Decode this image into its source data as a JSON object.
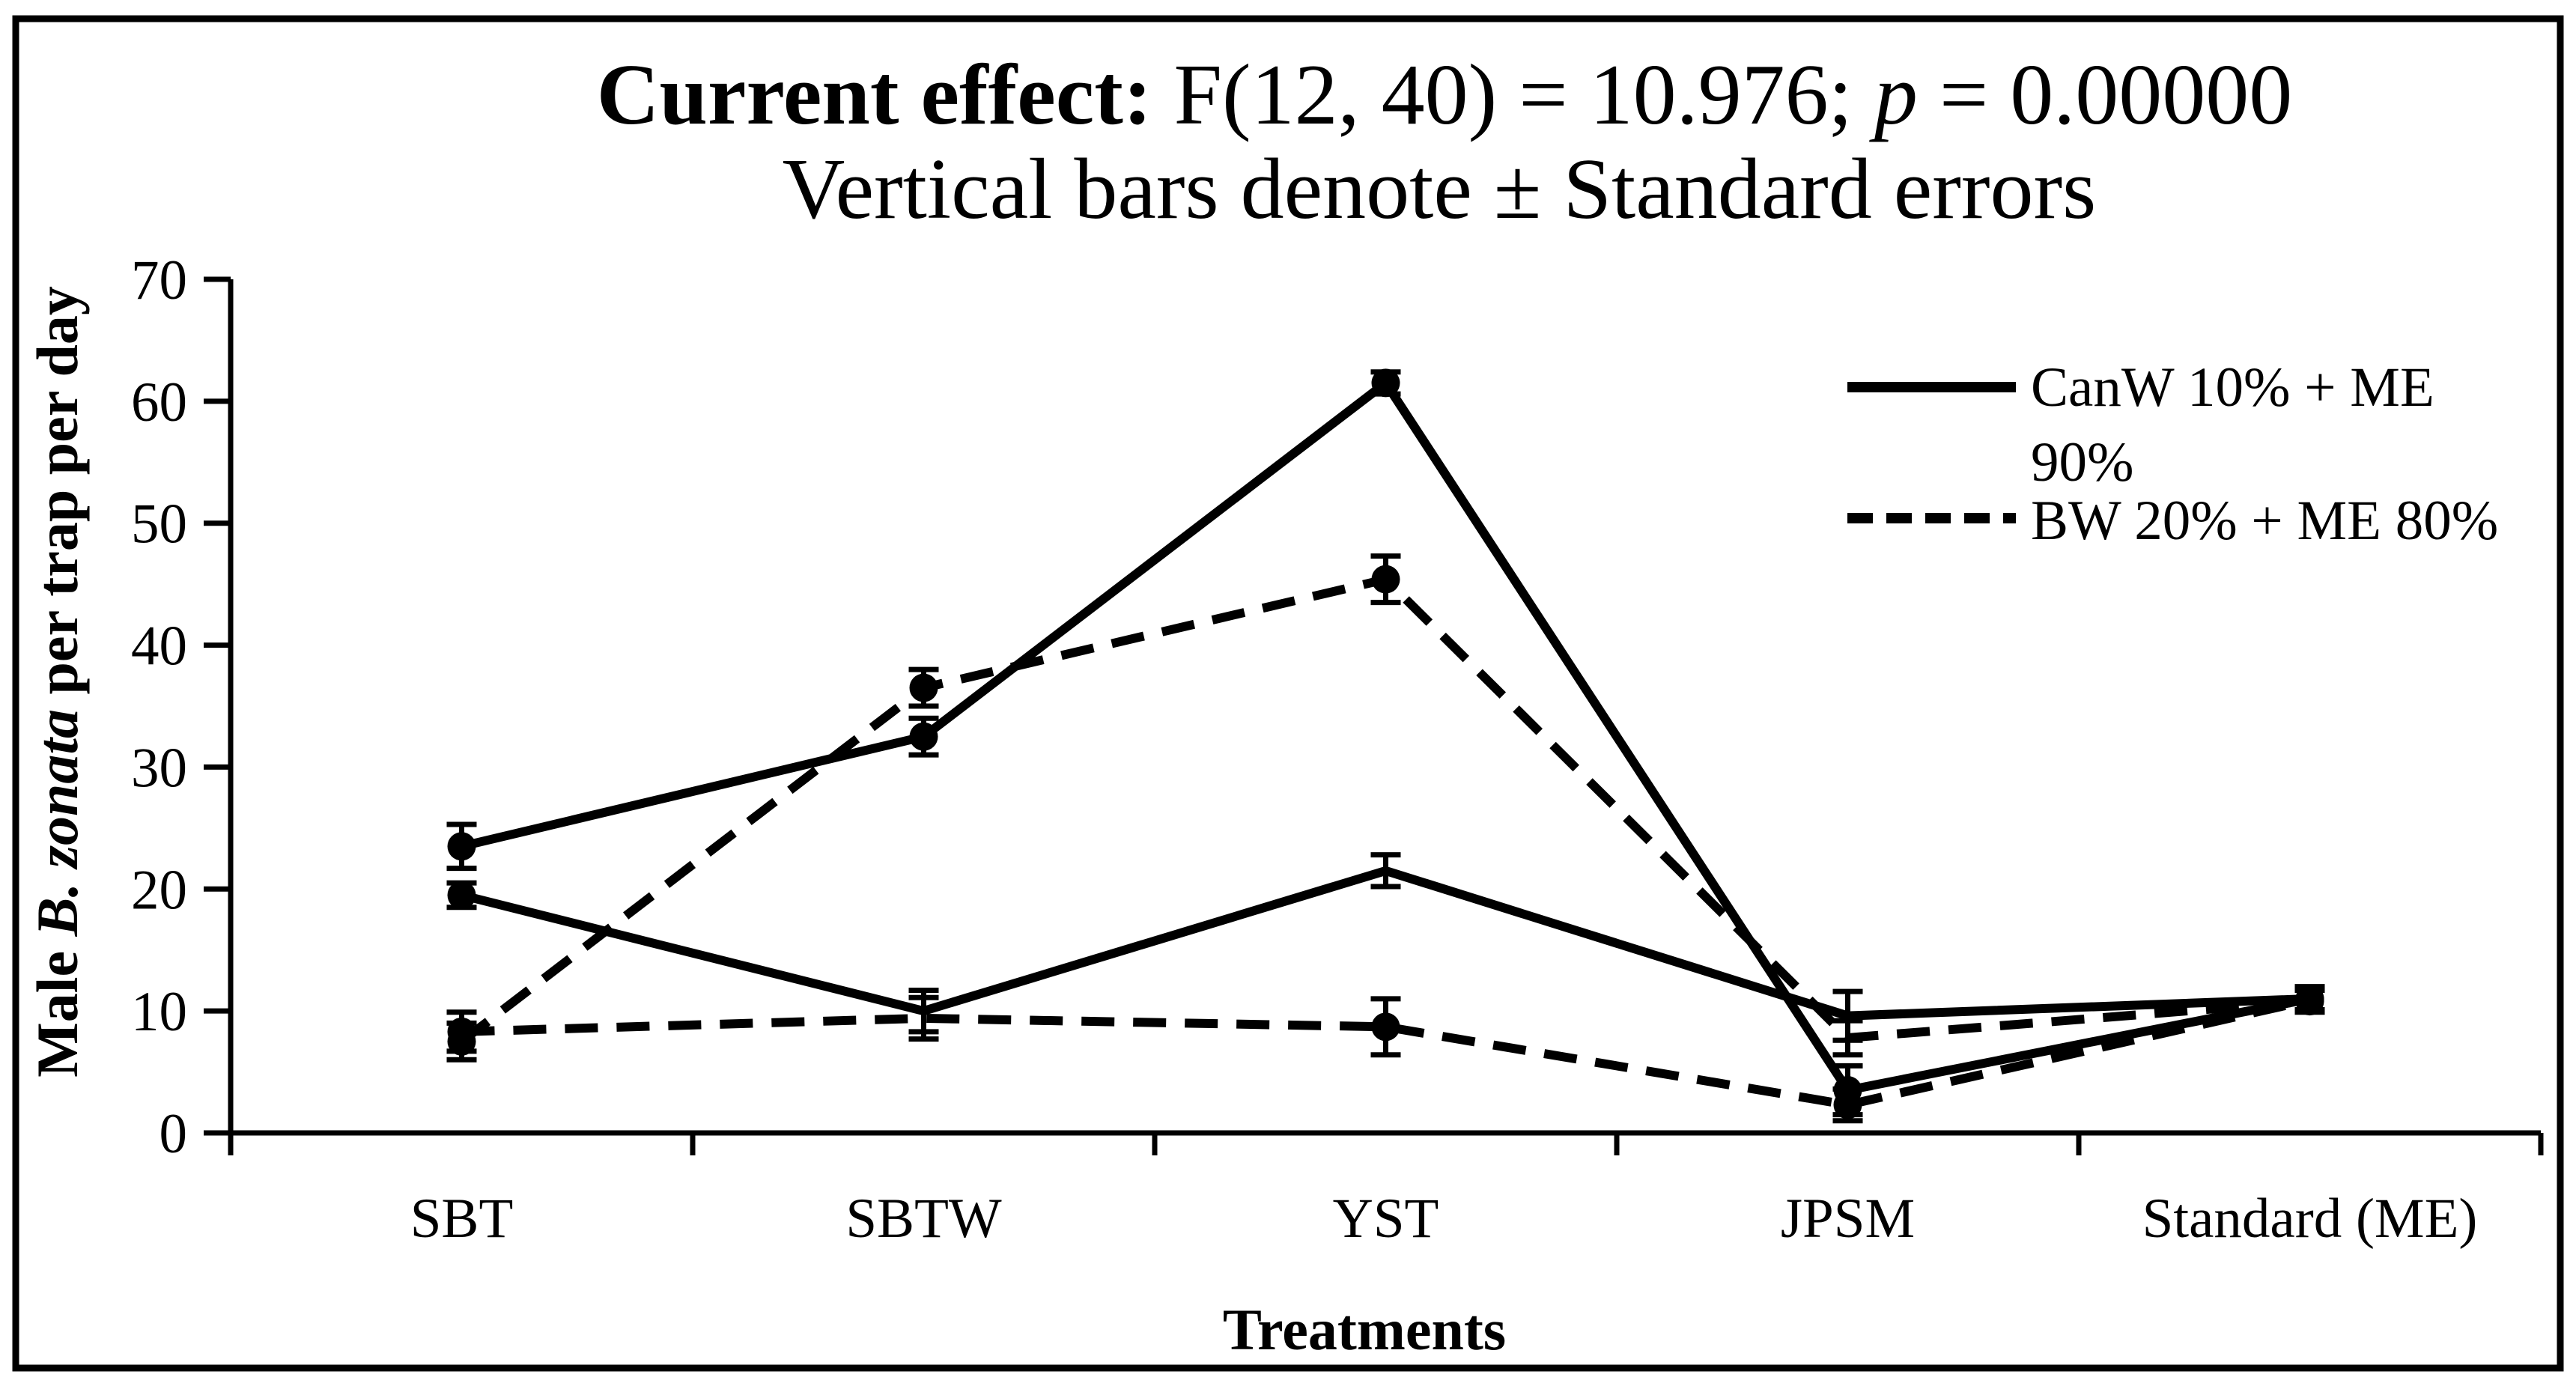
{
  "colors": {
    "ink": "#000000",
    "background": "#ffffff"
  },
  "header": {
    "title_bold": "Current effect:",
    "title_mid": " F(12, 40) = 10.976; ",
    "title_p": "p",
    "title_tail": " = 0.00000",
    "subtitle": "Vertical bars denote ± Standard errors"
  },
  "yaxis": {
    "label_prefix": "Male ",
    "label_italic": "B. zonata",
    "label_suffix": " per trap per day"
  },
  "legend": {
    "entries": [
      {
        "label": "CanW 10% + ME 90%",
        "line1": "CanW 10% + ME",
        "line2": "90%",
        "style": "solid"
      },
      {
        "label": "BW 20% + ME 80%",
        "line1": "BW 20% + ME 80%",
        "line2": "",
        "style": "dashed"
      }
    ]
  },
  "chart_data": {
    "type": "line",
    "title": "Current effect: F(12, 40) = 10.976; p = 0.00000",
    "subtitle": "Vertical bars denote ± Standard errors",
    "xlabel": "Treatments",
    "ylabel": "Male B. zonata per trap per day",
    "categories": [
      "SBT",
      "SBTW",
      "YST",
      "JPSM",
      "Standard (ME)"
    ],
    "ylim": [
      0,
      70
    ],
    "yticks": [
      0,
      10,
      20,
      30,
      40,
      50,
      60,
      70
    ],
    "grid": false,
    "legend_position": "upper right",
    "error_bars": "standard errors",
    "series": [
      {
        "name": "CanW 10% + ME 90%",
        "style": "solid",
        "values": [
          23.5,
          32.5,
          61.5,
          3.5,
          11.0
        ],
        "se": [
          1.8,
          1.5,
          0.9,
          2.0,
          1.0
        ],
        "markers": [
          1,
          1,
          1,
          1,
          1
        ]
      },
      {
        "name": "CanW 10% + ME 90%",
        "style": "solid",
        "values": [
          19.5,
          10.0,
          21.5,
          9.6,
          11.0
        ],
        "se": [
          1.0,
          1.7,
          1.3,
          2.0,
          0.9
        ],
        "markers": [
          1,
          0,
          0,
          0,
          1
        ]
      },
      {
        "name": "BW 20% + ME 80%",
        "style": "dashed",
        "values": [
          7.5,
          36.5,
          45.4,
          7.8,
          10.8
        ],
        "se": [
          1.5,
          1.5,
          1.9,
          1.4,
          0.9
        ],
        "markers": [
          1,
          1,
          1,
          0,
          1
        ]
      },
      {
        "name": "BW 20% + ME 80%",
        "style": "dashed",
        "values": [
          8.3,
          9.4,
          8.7,
          2.3,
          10.9
        ],
        "se": [
          1.6,
          1.7,
          2.3,
          1.3,
          0.8
        ],
        "markers": [
          1,
          0,
          1,
          1,
          1
        ]
      }
    ]
  }
}
